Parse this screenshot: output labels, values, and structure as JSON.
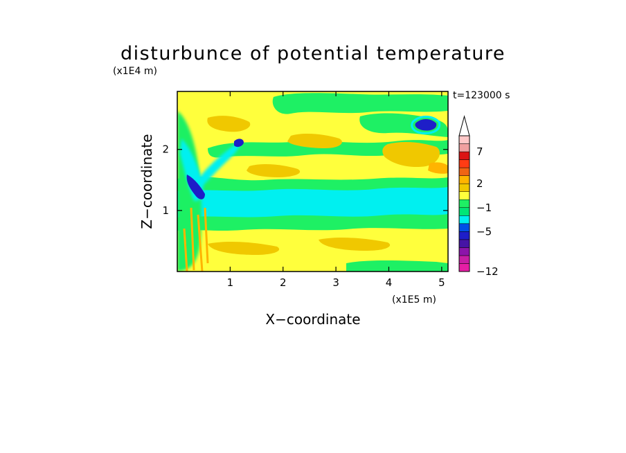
{
  "chart_data": {
    "type": "heatmap",
    "title": "disturbunce of potential temperature",
    "xlabel": "X−coordinate",
    "ylabel": "Z−coordinate",
    "x_unit_label": "(x1E5 m)",
    "y_unit_label": "(x1E4 m)",
    "time_label": "t=123000 s",
    "xlim": [
      0,
      5.12
    ],
    "ylim": [
      0,
      2.95
    ],
    "x_ticks": [
      1,
      2,
      3,
      4,
      5
    ],
    "x_tick_labels": [
      "1",
      "2",
      "3",
      "4",
      "5"
    ],
    "y_ticks": [
      1,
      2
    ],
    "y_tick_labels": [
      "1",
      "2"
    ],
    "colorbar": {
      "colors": [
        "#e61ea5",
        "#c81ea5",
        "#8c14aa",
        "#4614a5",
        "#1e1ec8",
        "#0050e6",
        "#00f0f0",
        "#00e676",
        "#1ef064",
        "#ffff3c",
        "#f0c800",
        "#ffb400",
        "#f06414",
        "#ff3c14",
        "#dc1414",
        "#f0a0a0",
        "#ffc8c8"
      ],
      "extend_top": true,
      "tick_labels": [
        "−12",
        "−5",
        "−1",
        "2",
        "7"
      ]
    },
    "fields": {
      "background": "yellow (~0 to 2)",
      "features": [
        {
          "name": "cyan band",
          "x_range": [
            0,
            5.12
          ],
          "z_range": [
            0.95,
            1.3
          ],
          "value_class": "-1"
        },
        {
          "name": "green band lower",
          "x_range": [
            0,
            5.12
          ],
          "z_range": [
            0.75,
            0.95
          ],
          "value_class": "0"
        },
        {
          "name": "green band upper",
          "x_range": [
            0,
            5.12
          ],
          "z_range": [
            1.35,
            1.55
          ],
          "value_class": "0"
        },
        {
          "name": "green band top",
          "x_range": [
            0.7,
            5.12
          ],
          "z_range": [
            1.75,
            2.1
          ],
          "value_class": "0"
        },
        {
          "name": "blue minimum near mountain",
          "x": 0.4,
          "z": 1.4,
          "value_class": "-5"
        },
        {
          "name": "blue spot upper right",
          "x": 4.6,
          "z": 2.4,
          "value_class": "-5"
        },
        {
          "name": "orange patches",
          "value_class": "2"
        }
      ]
    }
  }
}
